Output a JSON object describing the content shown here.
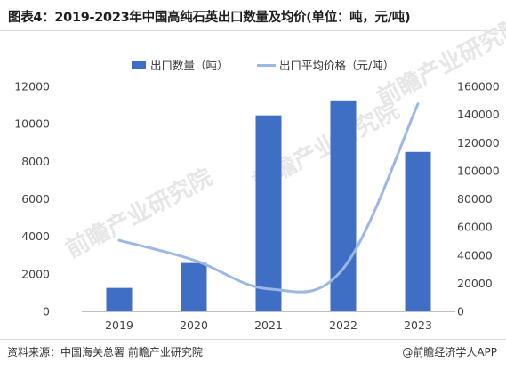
{
  "title": "图表4：2019-2023年中国高纯石英出口数量及均价(单位：吨，元/吨)",
  "footer": {
    "source": "资料来源：中国海关总署 前瞻产业研究院",
    "brand": "@前瞻经济学人APP"
  },
  "watermark": "前瞻产业研究院",
  "colors": {
    "bar": "#3f6fc4",
    "line": "#9cb7e6"
  },
  "chart_data": {
    "type": "bar+line",
    "categories": [
      "2019",
      "2020",
      "2021",
      "2022",
      "2023"
    ],
    "series": [
      {
        "name": "出口数量（吨）",
        "type": "bar",
        "axis": "left",
        "values": [
          1250,
          2580,
          10450,
          11250,
          8500
        ]
      },
      {
        "name": "出口平均价格（元/吨）",
        "type": "line",
        "axis": "right",
        "values": [
          50500,
          36500,
          16000,
          30500,
          147500
        ]
      }
    ],
    "left_axis": {
      "min": 0,
      "max": 12000,
      "ticks": [
        "0",
        "2000",
        "4000",
        "6000",
        "8000",
        "10000",
        "12000"
      ]
    },
    "right_axis": {
      "min": 0,
      "max": 160000,
      "ticks": [
        "0",
        "20000",
        "40000",
        "60000",
        "80000",
        "100000",
        "120000",
        "140000",
        "160000"
      ]
    },
    "grid": false,
    "legend_position": "top"
  }
}
